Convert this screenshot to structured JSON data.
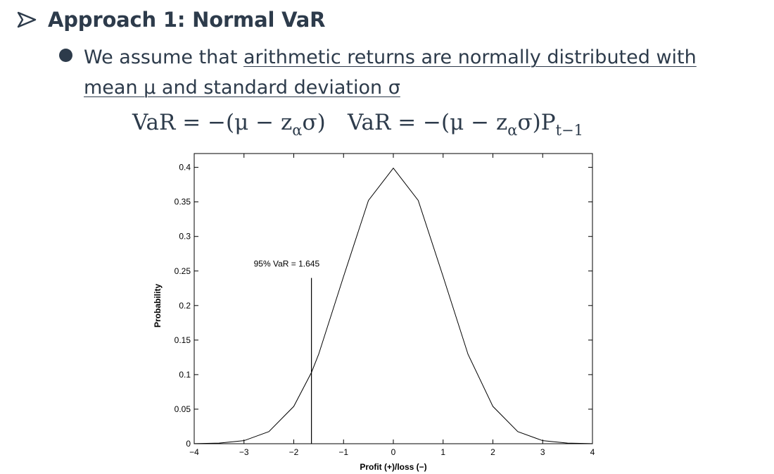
{
  "heading": {
    "icon": "arrow-bullet-icon",
    "text": "Approach 1: Normal VaR"
  },
  "bullet": {
    "icon": "round-bullet-icon",
    "prefix": "We assume that ",
    "underlined": "arithmetic returns are normally distributed with mean μ and standard deviation σ"
  },
  "formulas": [
    {
      "lhs": "VaR = −(μ − z",
      "sub": "α",
      "rhs": "σ)",
      "tail_sub": ""
    },
    {
      "lhs": "VaR = −(μ − z",
      "sub": "α",
      "rhs": "σ)P",
      "tail_sub": "t−1"
    }
  ],
  "chart_data": {
    "type": "line",
    "series": [
      {
        "distribution": "standard normal density",
        "x": [
          -4,
          -3.5,
          -3,
          -2.5,
          -2,
          -1.645,
          -1.5,
          -1,
          -0.5,
          0,
          0.5,
          1,
          1.5,
          2,
          2.5,
          3,
          3.5,
          4
        ],
        "y": [
          0.0001,
          0.0009,
          0.0044,
          0.0175,
          0.054,
          0.1031,
          0.1295,
          0.242,
          0.3521,
          0.3989,
          0.3521,
          0.242,
          0.1295,
          0.054,
          0.0175,
          0.0044,
          0.0009,
          0.0001
        ]
      }
    ],
    "var_line": {
      "x": -1.645,
      "y_top": 0.24
    },
    "annotation": "95% VaR = 1.645",
    "xlabel": "Profit (+)/loss (−)",
    "ylabel": "Probability",
    "xlim": [
      -4,
      4
    ],
    "ylim": [
      0,
      0.42
    ],
    "xticks": [
      -4,
      -3,
      -2,
      -1,
      0,
      1,
      2,
      3,
      4
    ],
    "xtick_labels": [
      "−4",
      "−3",
      "−2",
      "−1",
      "0",
      "1",
      "2",
      "3",
      "4"
    ],
    "yticks": [
      0,
      0.05,
      0.1,
      0.15,
      0.2,
      0.25,
      0.3,
      0.35,
      0.4
    ],
    "ytick_labels": [
      "0",
      "0.05",
      "0.1",
      "0.15",
      "0.2",
      "0.25",
      "0.3",
      "0.35",
      "0.4"
    ],
    "grid": false,
    "legend": "none",
    "line_color": "#000000"
  }
}
